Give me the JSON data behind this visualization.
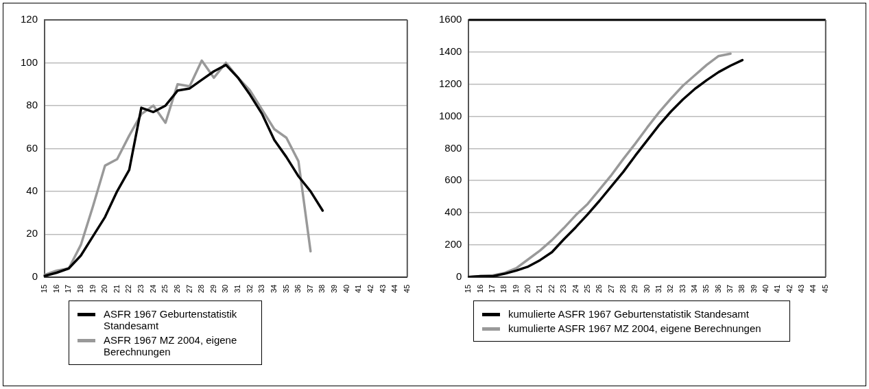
{
  "chart_data": [
    {
      "type": "line",
      "categories": [
        "15",
        "16",
        "17",
        "18",
        "19",
        "20",
        "21",
        "22",
        "23",
        "24",
        "25",
        "26",
        "27",
        "28",
        "29",
        "30",
        "31",
        "32",
        "33",
        "34",
        "35",
        "36",
        "37",
        "38",
        "39",
        "40",
        "41",
        "42",
        "43",
        "44",
        "45"
      ],
      "series": [
        {
          "name": "ASFR 1967 Geburtenstatistik Standesamt",
          "color": "#000000",
          "values": [
            0.5,
            2,
            4,
            10,
            19,
            28,
            40,
            50,
            79,
            77,
            80,
            87,
            88,
            92,
            96,
            99,
            93,
            85,
            76,
            64,
            56,
            47,
            40,
            31,
            null,
            null,
            null,
            null,
            null,
            null,
            null
          ]
        },
        {
          "name": "ASFR 1967 MZ 2004, eigene Berechnungen",
          "color": "#999999",
          "values": [
            1,
            3,
            4,
            15,
            33,
            52,
            55,
            66,
            76,
            80,
            72,
            90,
            89,
            101,
            93,
            100,
            93,
            87,
            78,
            69,
            65,
            54,
            12,
            null,
            null,
            null,
            null,
            null,
            null,
            null,
            null
          ]
        }
      ],
      "ylim": [
        0,
        120
      ],
      "yticks": [
        0,
        20,
        40,
        60,
        80,
        100,
        120
      ],
      "grid": "y",
      "legend": "bottom",
      "marker": "none",
      "line_style": "solid"
    },
    {
      "type": "line",
      "categories": [
        "15",
        "16",
        "17",
        "18",
        "19",
        "20",
        "21",
        "22",
        "23",
        "24",
        "25",
        "26",
        "27",
        "28",
        "29",
        "30",
        "31",
        "32",
        "33",
        "34",
        "35",
        "36",
        "37",
        "38",
        "39",
        "40",
        "41",
        "42",
        "43",
        "44",
        "45"
      ],
      "series": [
        {
          "name": "kumulierte ASFR 1967 Geburtenstatistik Standesamt",
          "color": "#000000",
          "values": [
            0,
            5,
            5,
            20,
            40,
            65,
            105,
            155,
            235,
            310,
            390,
            475,
            565,
            655,
            755,
            850,
            945,
            1030,
            1105,
            1170,
            1225,
            1275,
            1315,
            1350,
            null,
            null,
            null,
            null,
            null,
            null,
            null
          ]
        },
        {
          "name": "kumulierte ASFR 1967 MZ 2004, eigene Berechnungen",
          "color": "#999999",
          "values": [
            0,
            5,
            10,
            25,
            55,
            110,
            165,
            230,
            305,
            385,
            455,
            545,
            635,
            735,
            830,
            930,
            1025,
            1110,
            1190,
            1255,
            1320,
            1375,
            1390,
            null,
            null,
            null,
            null,
            null,
            null,
            null,
            null
          ]
        }
      ],
      "ylim": [
        0,
        1600
      ],
      "yticks": [
        0,
        200,
        400,
        600,
        800,
        1000,
        1200,
        1400,
        1600
      ],
      "grid": "y",
      "legend": "bottom",
      "marker": "none",
      "line_style": "solid"
    }
  ]
}
